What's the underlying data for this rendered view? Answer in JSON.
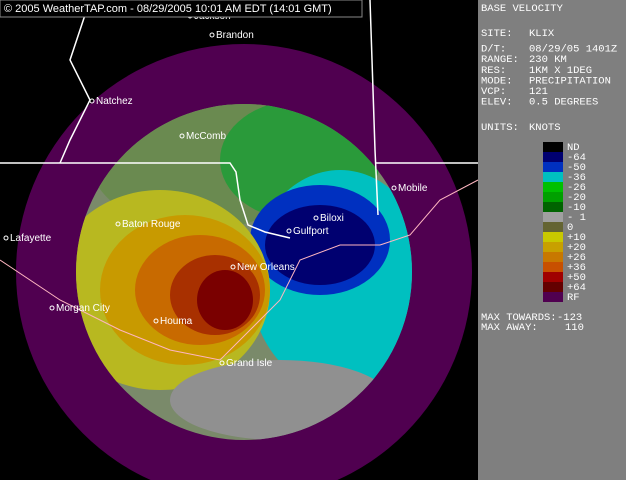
{
  "header": {
    "title": "© 2005 WeatherTAP.com - 08/29/2005 10:01 AM EDT (14:01 GMT)"
  },
  "panel": {
    "title": "BASE VELOCITY",
    "fields": [
      {
        "label": "SITE:",
        "value": "KLIX"
      },
      {
        "label": "D/T:",
        "value": "08/29/05 1401Z"
      },
      {
        "label": "RANGE:",
        "value": "230 KM"
      },
      {
        "label": "RES:",
        "value": "1KM X 1DEG"
      },
      {
        "label": "MODE:",
        "value": "PRECIPITATION"
      },
      {
        "label": "VCP:",
        "value": "121"
      },
      {
        "label": "ELEV:",
        "value": "0.5 DEGREES"
      }
    ],
    "units": {
      "label": "UNITS:",
      "value": "KNOTS"
    },
    "legend": [
      {
        "label": "ND",
        "color": "#000000"
      },
      {
        "label": "-64",
        "color": "#000070"
      },
      {
        "label": "-50",
        "color": "#0030c0"
      },
      {
        "label": "-36",
        "color": "#00c0c0"
      },
      {
        "label": "-26",
        "color": "#00c000"
      },
      {
        "label": "-20",
        "color": "#00a000"
      },
      {
        "label": "-10",
        "color": "#006400"
      },
      {
        "label": "- 1",
        "color": "#a0a0a0"
      },
      {
        "label": "0",
        "color": "#646432"
      },
      {
        "label": "+10",
        "color": "#c8c800"
      },
      {
        "label": "+20",
        "color": "#c8a000"
      },
      {
        "label": "+26",
        "color": "#c87800"
      },
      {
        "label": "+36",
        "color": "#c85000"
      },
      {
        "label": "+50",
        "color": "#a00000"
      },
      {
        "label": "+64",
        "color": "#640000"
      },
      {
        "label": "RF",
        "color": "#500050"
      }
    ],
    "max": [
      {
        "label": "MAX TOWARDS:",
        "value": "-123"
      },
      {
        "label": "MAX AWAY:",
        "value": "110"
      }
    ]
  },
  "cities": [
    "Jackson",
    "Brandon",
    "Natchez",
    "McComb",
    "Mobile",
    "Biloxi",
    "Gulfport",
    "Baton Rouge",
    "Lafayette",
    "New Orleans",
    "Morgan City",
    "Houma",
    "Grand Isle"
  ]
}
